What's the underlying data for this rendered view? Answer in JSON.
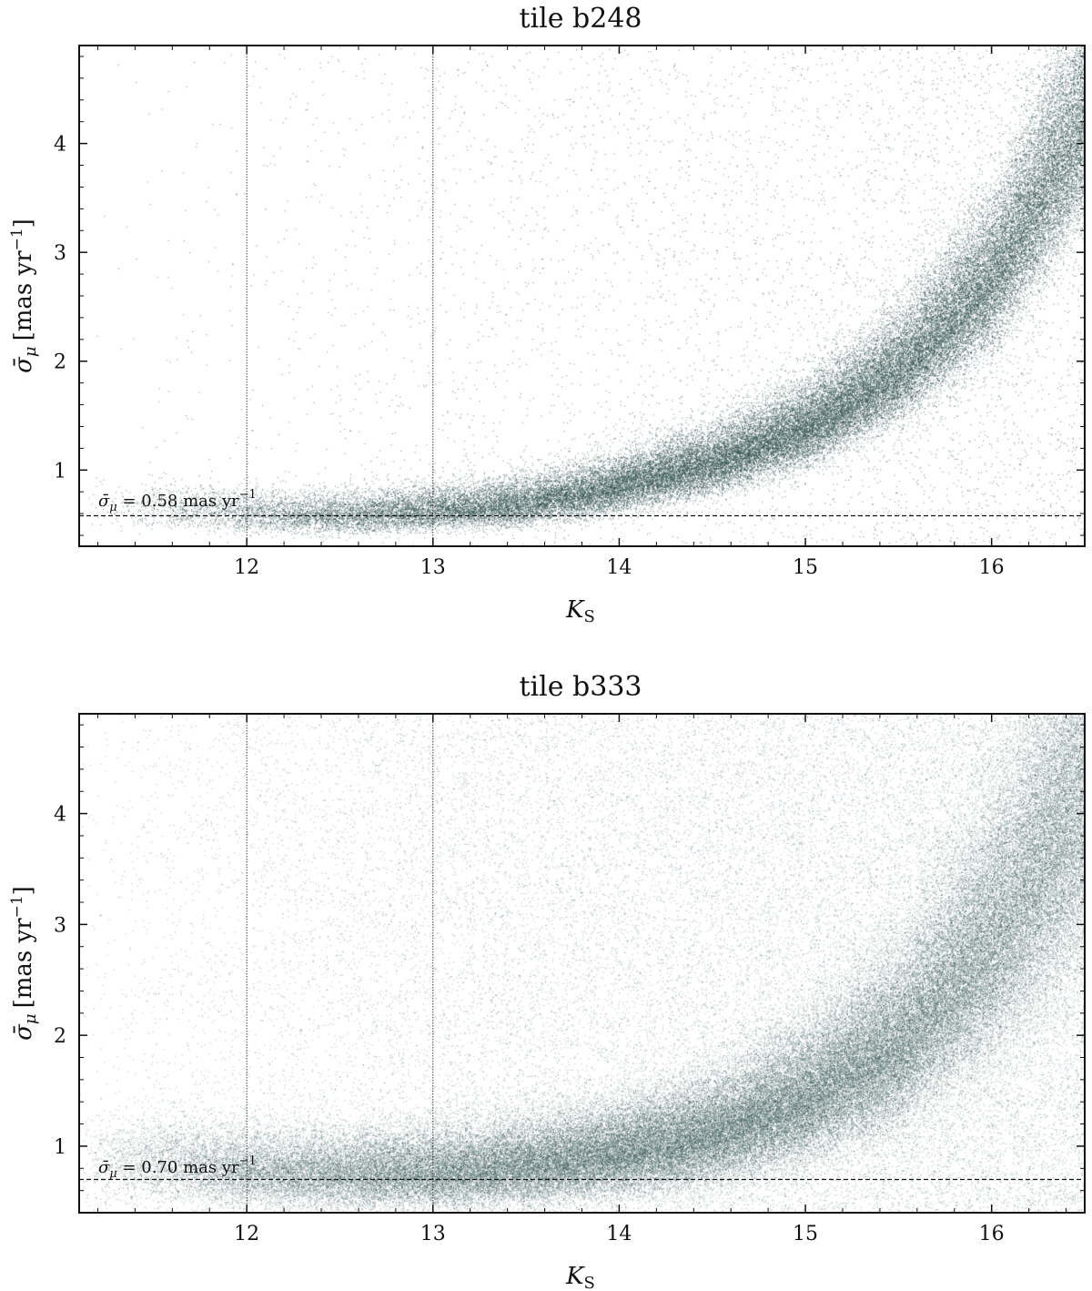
{
  "chart_data": [
    {
      "type": "scatter",
      "title": "tile b248",
      "xlabel": "K",
      "xlabel_sub": "S",
      "ylabel": "σ̄",
      "ylabel_sub": "μ",
      "ylabel_unit": "[mas yr",
      "ylabel_unit_sup": "−1",
      "ylabel_unit_close": "]",
      "xlim": [
        11.1,
        16.5
      ],
      "ylim": [
        0.3,
        4.9
      ],
      "xticks": [
        12,
        13,
        14,
        15,
        16
      ],
      "xtick_labels": [
        "12",
        "13",
        "14",
        "15",
        "16"
      ],
      "yticks": [
        1,
        2,
        3,
        4
      ],
      "ytick_labels": [
        "1",
        "2",
        "3",
        "4"
      ],
      "vlines": [
        12,
        13
      ],
      "hline": 0.58,
      "hline_label": {
        "prefix": "σ̄",
        "sub": "μ",
        "text": " = 0.58 mas yr",
        "sup": "−1"
      },
      "grid": false,
      "color": "#2f4f4f",
      "density": "sparse",
      "trend": [
        {
          "x": 11.5,
          "y": 0.62
        },
        {
          "x": 12.0,
          "y": 0.56
        },
        {
          "x": 12.5,
          "y": 0.55
        },
        {
          "x": 13.0,
          "y": 0.58
        },
        {
          "x": 13.5,
          "y": 0.65
        },
        {
          "x": 14.0,
          "y": 0.8
        },
        {
          "x": 14.5,
          "y": 1.0
        },
        {
          "x": 15.0,
          "y": 1.3
        },
        {
          "x": 15.5,
          "y": 1.8
        },
        {
          "x": 16.0,
          "y": 2.6
        },
        {
          "x": 16.5,
          "y": 4.0
        }
      ]
    },
    {
      "type": "scatter",
      "title": "tile b333",
      "xlabel": "K",
      "xlabel_sub": "S",
      "ylabel": "σ̄",
      "ylabel_sub": "μ",
      "ylabel_unit": "[mas yr",
      "ylabel_unit_sup": "−1",
      "ylabel_unit_close": "]",
      "xlim": [
        11.1,
        16.5
      ],
      "ylim": [
        0.4,
        4.9
      ],
      "xticks": [
        12,
        13,
        14,
        15,
        16
      ],
      "xtick_labels": [
        "12",
        "13",
        "14",
        "15",
        "16"
      ],
      "yticks": [
        1,
        2,
        3,
        4
      ],
      "ytick_labels": [
        "1",
        "2",
        "3",
        "4"
      ],
      "vlines": [
        12,
        13
      ],
      "hline": 0.7,
      "hline_label": {
        "prefix": "σ̄",
        "sub": "μ",
        "text": " = 0.70 mas yr",
        "sup": "−1"
      },
      "grid": false,
      "color": "#2f4f4f",
      "density": "dense",
      "trend": [
        {
          "x": 11.5,
          "y": 0.78
        },
        {
          "x": 12.0,
          "y": 0.7
        },
        {
          "x": 12.5,
          "y": 0.68
        },
        {
          "x": 13.0,
          "y": 0.7
        },
        {
          "x": 13.5,
          "y": 0.75
        },
        {
          "x": 14.0,
          "y": 0.85
        },
        {
          "x": 14.5,
          "y": 1.0
        },
        {
          "x": 15.0,
          "y": 1.3
        },
        {
          "x": 15.5,
          "y": 1.75
        },
        {
          "x": 16.0,
          "y": 2.6
        },
        {
          "x": 16.5,
          "y": 3.8
        }
      ]
    }
  ]
}
